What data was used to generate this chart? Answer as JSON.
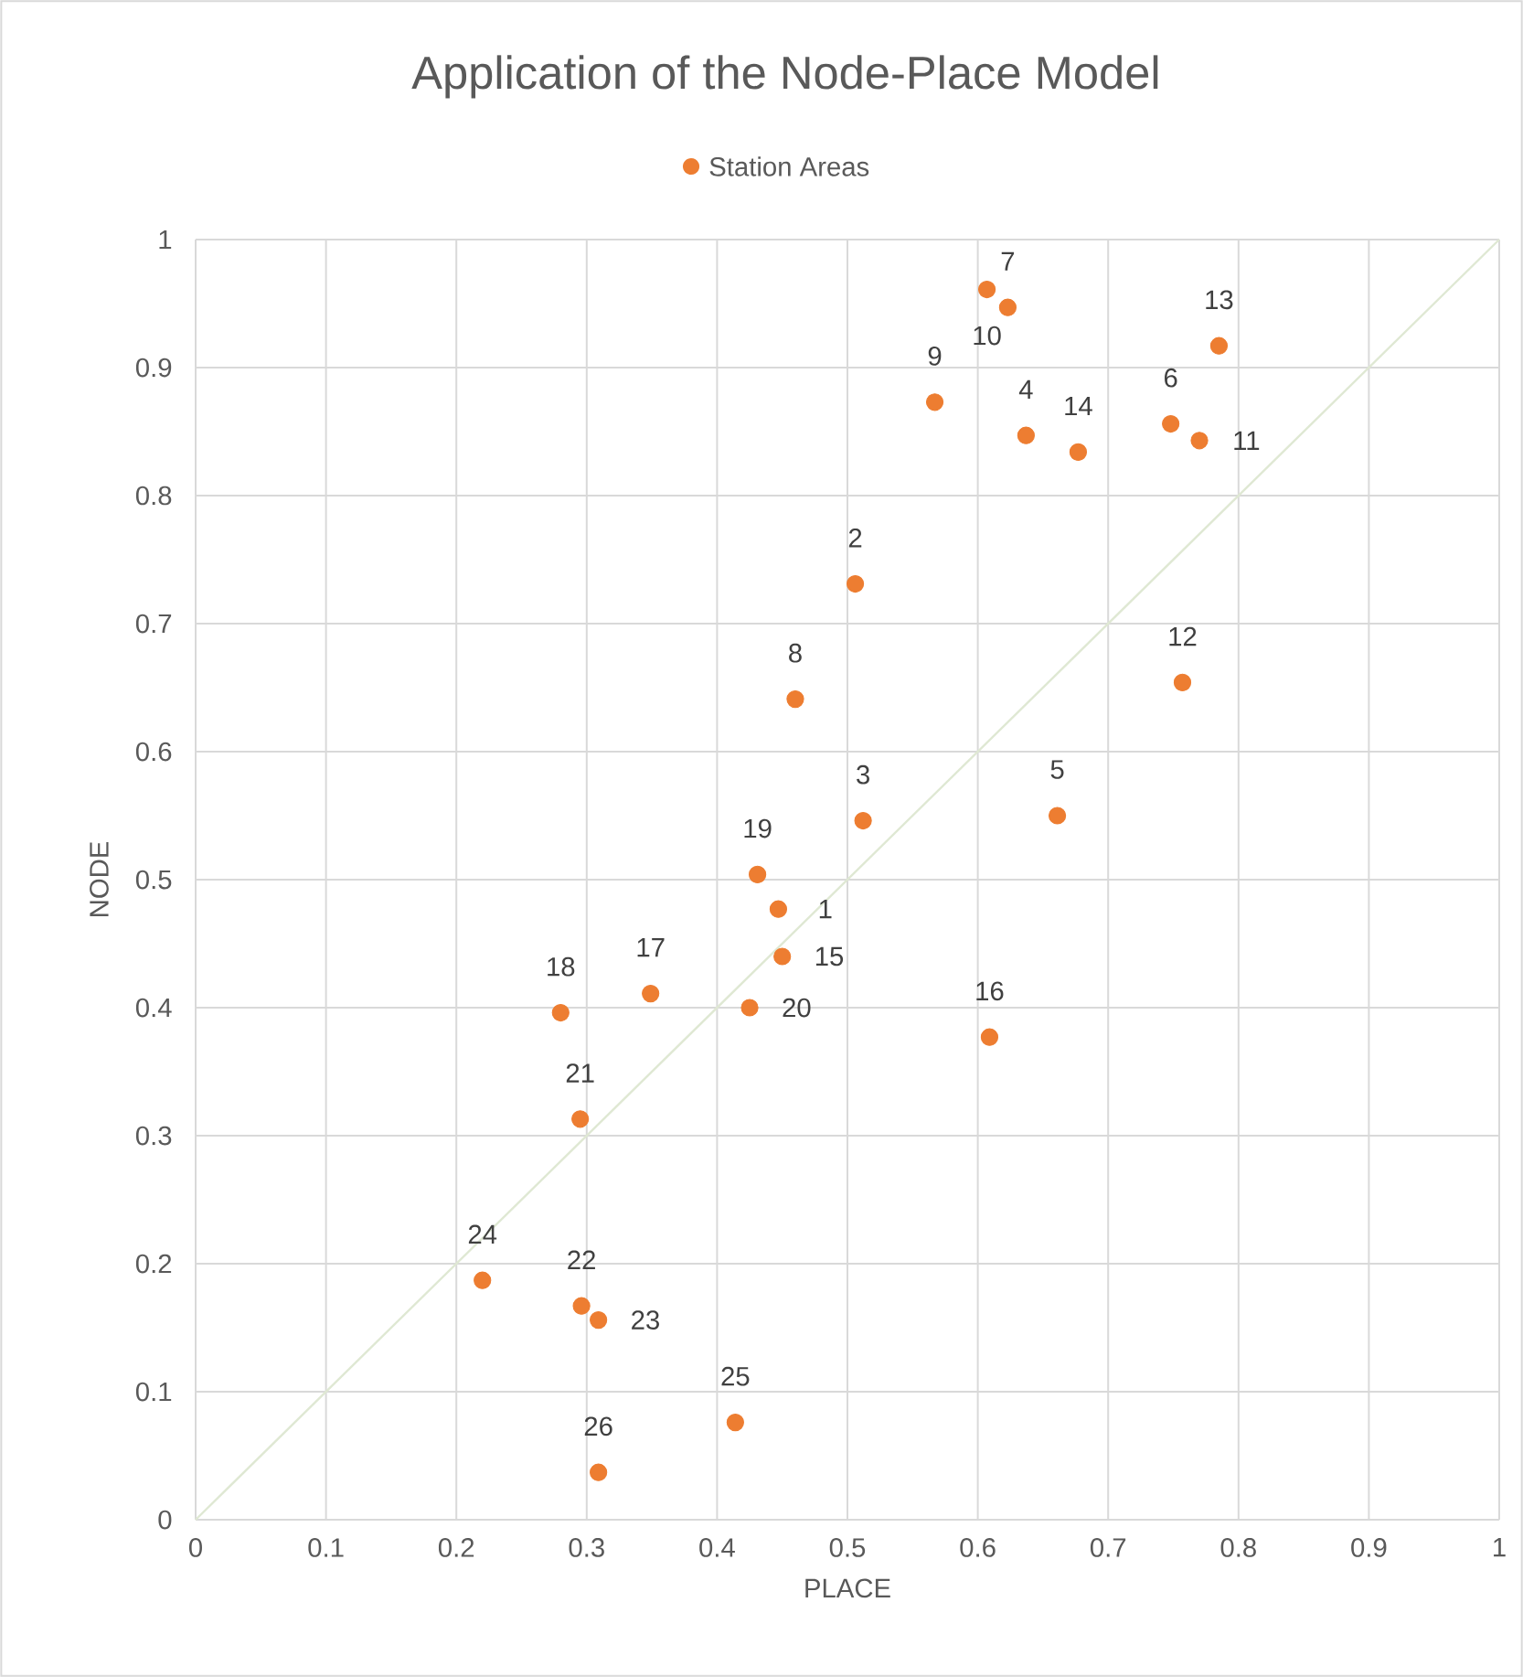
{
  "chart_data": {
    "type": "scatter",
    "title": "Application of the Node-Place Model",
    "xlabel": "PLACE",
    "ylabel": "NODE",
    "xlim": [
      0,
      1
    ],
    "ylim": [
      0,
      1
    ],
    "xticks": [
      0,
      0.1,
      0.2,
      0.3,
      0.4,
      0.5,
      0.6,
      0.7,
      0.8,
      0.9,
      1
    ],
    "yticks": [
      0,
      0.1,
      0.2,
      0.3,
      0.4,
      0.5,
      0.6,
      0.7,
      0.8,
      0.9,
      1
    ],
    "grid": true,
    "legend": "top",
    "series": [
      {
        "name": "Station Areas",
        "color": "#ed7d31",
        "marker": "circle",
        "x": [
          0.447,
          0.506,
          0.512,
          0.637,
          0.661,
          0.748,
          0.623,
          0.46,
          0.567,
          0.607,
          0.77,
          0.757,
          0.785,
          0.677,
          0.45,
          0.609,
          0.349,
          0.28,
          0.431,
          0.425,
          0.295,
          0.296,
          0.309,
          0.22,
          0.414,
          0.309
        ],
        "values": [
          0.477,
          0.731,
          0.546,
          0.847,
          0.55,
          0.856,
          0.947,
          0.641,
          0.873,
          0.961,
          0.843,
          0.654,
          0.917,
          0.834,
          0.44,
          0.377,
          0.411,
          0.396,
          0.504,
          0.4,
          0.313,
          0.167,
          0.156,
          0.187,
          0.076,
          0.037
        ]
      },
      {
        "type": "line",
        "marker": "none",
        "color": "#dfe8d3",
        "x": [
          0,
          1
        ],
        "values": [
          0,
          1
        ]
      }
    ],
    "annotations": [
      {
        "text": "1",
        "x": 0.447,
        "y": 0.477
      },
      {
        "text": "2",
        "x": 0.506,
        "y": 0.731
      },
      {
        "text": "3",
        "x": 0.512,
        "y": 0.546
      },
      {
        "text": "4",
        "x": 0.637,
        "y": 0.847
      },
      {
        "text": "5",
        "x": 0.661,
        "y": 0.55
      },
      {
        "text": "6",
        "x": 0.748,
        "y": 0.856
      },
      {
        "text": "7",
        "x": 0.623,
        "y": 0.947
      },
      {
        "text": "8",
        "x": 0.46,
        "y": 0.641
      },
      {
        "text": "9",
        "x": 0.567,
        "y": 0.873
      },
      {
        "text": "10",
        "x": 0.607,
        "y": 0.961
      },
      {
        "text": "11",
        "x": 0.77,
        "y": 0.843
      },
      {
        "text": "12",
        "x": 0.757,
        "y": 0.654
      },
      {
        "text": "13",
        "x": 0.785,
        "y": 0.917
      },
      {
        "text": "14",
        "x": 0.677,
        "y": 0.834
      },
      {
        "text": "15",
        "x": 0.45,
        "y": 0.44
      },
      {
        "text": "16",
        "x": 0.609,
        "y": 0.377
      },
      {
        "text": "17",
        "x": 0.349,
        "y": 0.411
      },
      {
        "text": "18",
        "x": 0.28,
        "y": 0.396
      },
      {
        "text": "19",
        "x": 0.431,
        "y": 0.504
      },
      {
        "text": "20",
        "x": 0.425,
        "y": 0.4
      },
      {
        "text": "21",
        "x": 0.295,
        "y": 0.313
      },
      {
        "text": "22",
        "x": 0.296,
        "y": 0.167
      },
      {
        "text": "23",
        "x": 0.309,
        "y": 0.156
      },
      {
        "text": "24",
        "x": 0.22,
        "y": 0.187
      },
      {
        "text": "25",
        "x": 0.414,
        "y": 0.076
      },
      {
        "text": "26",
        "x": 0.309,
        "y": 0.037
      }
    ]
  }
}
